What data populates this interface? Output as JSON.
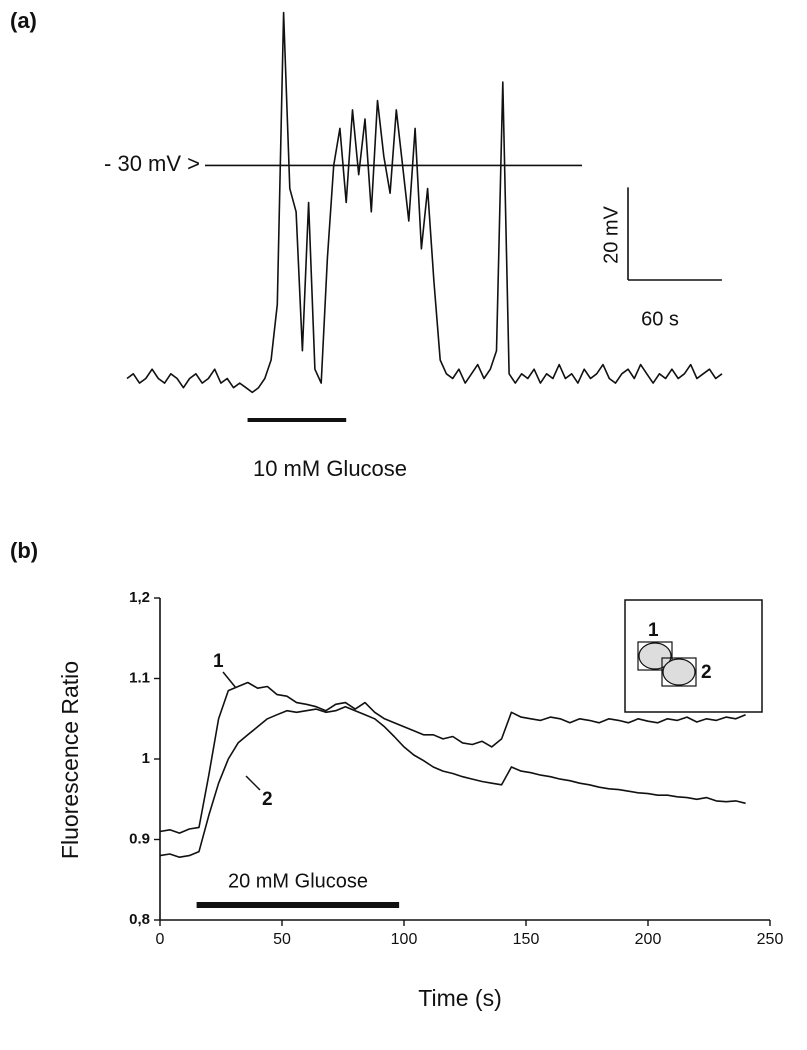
{
  "chart_data": [
    {
      "type": "line",
      "panel_label": "(a)",
      "color": "#111111",
      "x": [
        0,
        4,
        8,
        12,
        16,
        20,
        24,
        28,
        32,
        36,
        40,
        44,
        48,
        52,
        56,
        60,
        64,
        68,
        72,
        76,
        80,
        84,
        88,
        92,
        96,
        100,
        104,
        108,
        112,
        116,
        120,
        124,
        128,
        132,
        136,
        140,
        144,
        148,
        152,
        156,
        160,
        164,
        168,
        172,
        176,
        180,
        184,
        188,
        192,
        196,
        200,
        204,
        208,
        212,
        216,
        220,
        224,
        228,
        232,
        236,
        240,
        244,
        248,
        252,
        256,
        260,
        264,
        268,
        272,
        276,
        280,
        284,
        288,
        292,
        296,
        300,
        304,
        308,
        312,
        316,
        320,
        324,
        328,
        332,
        336,
        340,
        344,
        348,
        352,
        356,
        360,
        364,
        368,
        372,
        376,
        380
      ],
      "values": [
        -76,
        -75,
        -77,
        -76,
        -74,
        -76,
        -77,
        -75,
        -76,
        -78,
        -76,
        -75,
        -77,
        -76,
        -74,
        -77,
        -76,
        -78,
        -77,
        -78,
        -79,
        -78,
        -76,
        -72,
        -60,
        3,
        -35,
        -40,
        -70,
        -38,
        -74,
        -77,
        -50,
        -30,
        -22,
        -38,
        -18,
        -32,
        -20,
        -40,
        -16,
        -28,
        -36,
        -18,
        -30,
        -42,
        -22,
        -48,
        -35,
        -55,
        -72,
        -75,
        -76,
        -74,
        -77,
        -75,
        -73,
        -76,
        -74,
        -70,
        -12,
        -75,
        -77,
        -75,
        -76,
        -74,
        -77,
        -75,
        -76,
        -73,
        -76,
        -75,
        -77,
        -74,
        -76,
        -75,
        -73,
        -76,
        -77,
        -75,
        -74,
        -76,
        -73,
        -75,
        -77,
        -75,
        -76,
        -74,
        -76,
        -75,
        -73,
        -76,
        -75,
        -74,
        -76,
        -75
      ],
      "xlim": [
        0,
        380
      ],
      "ylim": [
        -80,
        4
      ],
      "reference_line": {
        "value": -30,
        "label": "- 30 mV >"
      },
      "scale_bars": {
        "y": {
          "value": 20,
          "label": "20 mV"
        },
        "x": {
          "value": 60,
          "label": "60 s"
        }
      },
      "stimulus": {
        "start": 77,
        "end": 140,
        "label": "10 mM Glucose"
      }
    },
    {
      "type": "line",
      "panel_label": "(b)",
      "xlabel": "Time (s)",
      "ylabel": "Fluorescence Ratio",
      "x": [
        0,
        4,
        8,
        12,
        16,
        20,
        24,
        28,
        32,
        36,
        40,
        44,
        48,
        52,
        56,
        60,
        64,
        68,
        72,
        76,
        80,
        84,
        88,
        92,
        96,
        100,
        104,
        108,
        112,
        116,
        120,
        124,
        128,
        132,
        136,
        140,
        144,
        148,
        152,
        156,
        160,
        164,
        168,
        172,
        176,
        180,
        184,
        188,
        192,
        196,
        200,
        204,
        208,
        212,
        216,
        220,
        224,
        228,
        232,
        236,
        240
      ],
      "series": [
        {
          "name": "1",
          "color": "#111111",
          "values": [
            0.91,
            0.912,
            0.908,
            0.913,
            0.915,
            0.98,
            1.05,
            1.085,
            1.09,
            1.095,
            1.088,
            1.09,
            1.08,
            1.078,
            1.07,
            1.068,
            1.065,
            1.06,
            1.068,
            1.07,
            1.062,
            1.07,
            1.058,
            1.05,
            1.045,
            1.04,
            1.035,
            1.03,
            1.03,
            1.025,
            1.028,
            1.02,
            1.018,
            1.022,
            1.015,
            1.025,
            1.058,
            1.052,
            1.05,
            1.048,
            1.052,
            1.05,
            1.045,
            1.05,
            1.048,
            1.045,
            1.05,
            1.048,
            1.045,
            1.05,
            1.047,
            1.045,
            1.05,
            1.048,
            1.052,
            1.046,
            1.05,
            1.048,
            1.052,
            1.05,
            1.055
          ]
        },
        {
          "name": "2",
          "color": "#111111",
          "values": [
            0.88,
            0.882,
            0.878,
            0.88,
            0.885,
            0.93,
            0.97,
            1.0,
            1.02,
            1.03,
            1.04,
            1.05,
            1.055,
            1.06,
            1.058,
            1.06,
            1.062,
            1.058,
            1.06,
            1.065,
            1.06,
            1.055,
            1.05,
            1.04,
            1.028,
            1.015,
            1.005,
            0.998,
            0.99,
            0.985,
            0.982,
            0.978,
            0.975,
            0.972,
            0.97,
            0.968,
            0.99,
            0.985,
            0.983,
            0.98,
            0.978,
            0.975,
            0.973,
            0.97,
            0.968,
            0.965,
            0.963,
            0.962,
            0.96,
            0.958,
            0.957,
            0.955,
            0.955,
            0.953,
            0.952,
            0.95,
            0.952,
            0.948,
            0.947,
            0.948,
            0.945
          ]
        }
      ],
      "xlim": [
        0,
        250
      ],
      "xticks": [
        0,
        50,
        100,
        150,
        200,
        250
      ],
      "ylim": [
        0.8,
        1.2
      ],
      "yticks": [
        {
          "value": 0.8,
          "label": "0,8"
        },
        0.9,
        1,
        1.1,
        {
          "value": 1.2,
          "label": "1,2"
        }
      ],
      "grid": false,
      "stimulus": {
        "start": 15,
        "end": 98,
        "label": "20 mM Glucose"
      }
    }
  ]
}
